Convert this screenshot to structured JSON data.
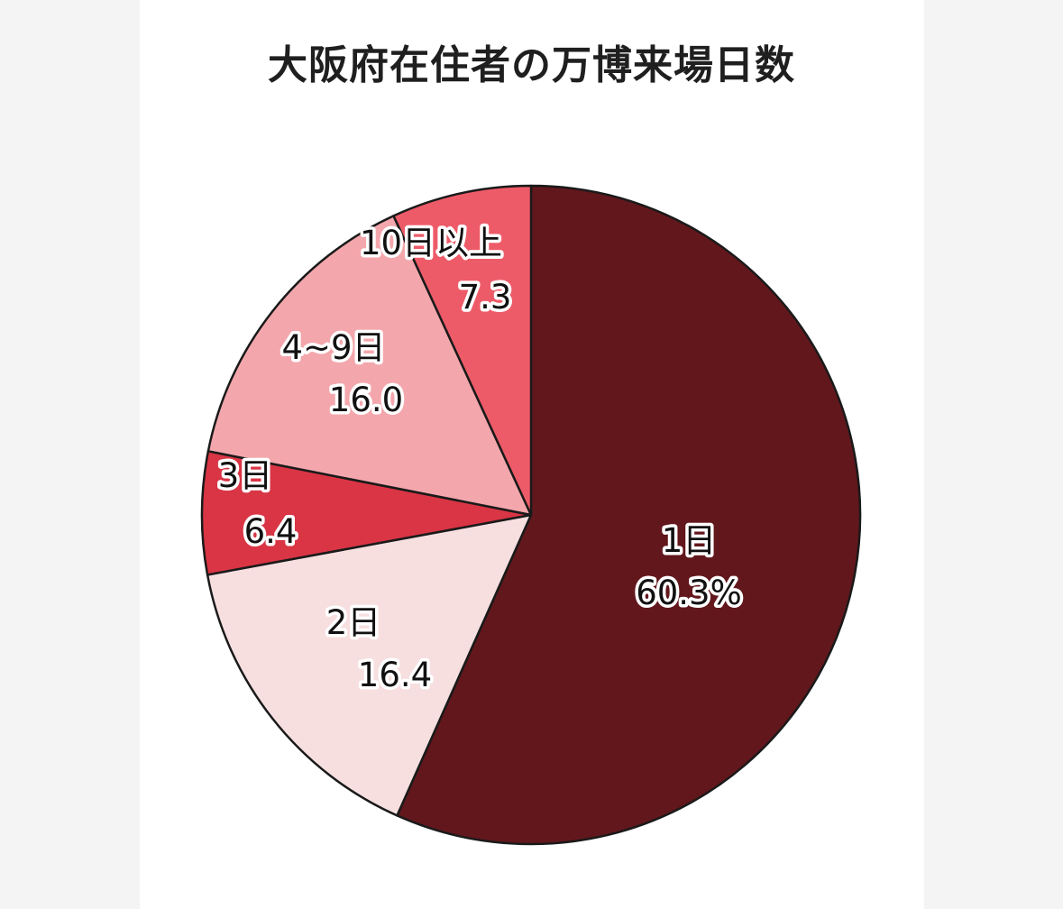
{
  "chart_data": {
    "type": "pie",
    "title": "大阪府在住者の万博来場日数",
    "start_angle_deg": 0,
    "direction": "clockwise",
    "slices": [
      {
        "label": "1日",
        "value": 60.3,
        "value_label": "60.3%",
        "color": "#62171c"
      },
      {
        "label": "2日",
        "value": 16.4,
        "value_label": "16.4",
        "color": "#f7dfe0"
      },
      {
        "label": "3日",
        "value": 6.4,
        "value_label": "6.4",
        "color": "#d93545"
      },
      {
        "label": "4~9日",
        "value": 16.0,
        "value_label": "16.0",
        "color": "#f3a7ac"
      },
      {
        "label": "10日以上",
        "value": 7.3,
        "value_label": "7.3",
        "color": "#ee5b68"
      }
    ]
  }
}
